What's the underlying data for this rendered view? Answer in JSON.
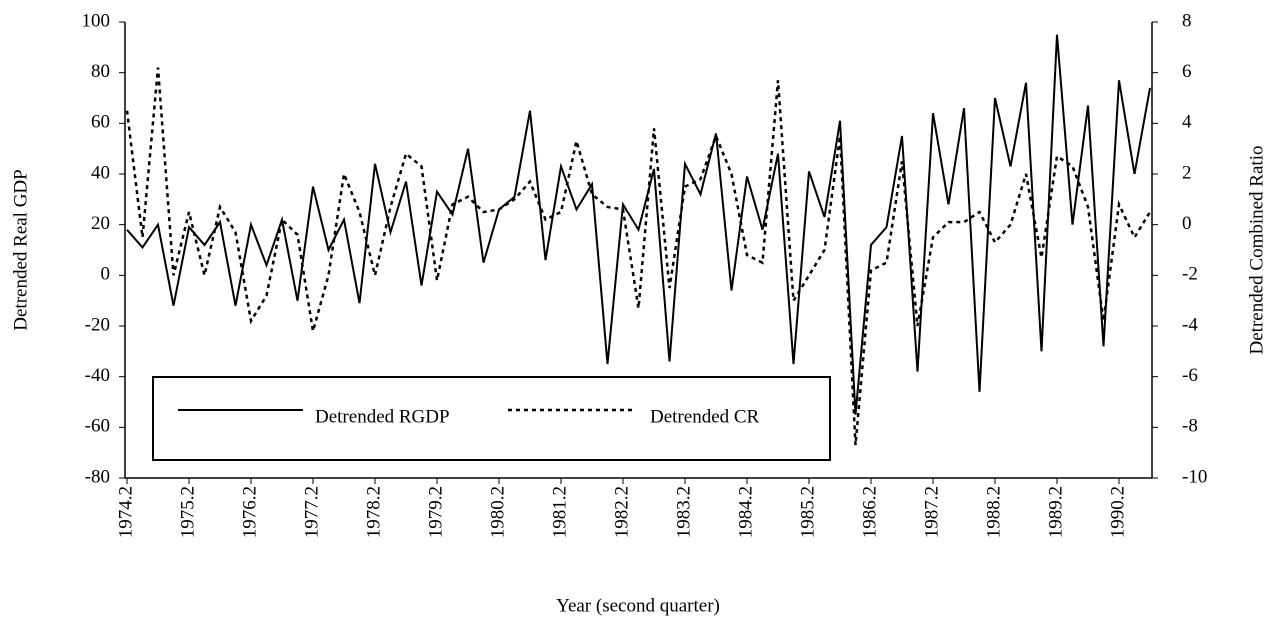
{
  "chart_data": {
    "type": "line",
    "x_label": "Year (second quarter)",
    "y_label": "Detrended Real GDP",
    "y2_label": "Detrended Combined Ratio",
    "categories": [
      "1974.2",
      null,
      null,
      null,
      "1975.2",
      null,
      null,
      null,
      "1976.2",
      null,
      null,
      null,
      "1977.2",
      null,
      null,
      null,
      "1978.2",
      null,
      null,
      null,
      "1979.2",
      null,
      null,
      null,
      "1980.2",
      null,
      null,
      null,
      "1981.2",
      null,
      null,
      null,
      "1982.2",
      null,
      null,
      null,
      "1983.2",
      null,
      null,
      null,
      "1984.2",
      null,
      null,
      null,
      "1985.2",
      null,
      null,
      null,
      "1986.2",
      null,
      null,
      null,
      "1987.2",
      null,
      null,
      null,
      "1988.2",
      null,
      null,
      null,
      "1989.2",
      null,
      null,
      null,
      "1990.2",
      null,
      null
    ],
    "series": [
      {
        "name": "Detrended RGDP",
        "color": "#000000",
        "dash": "solid",
        "values": [
          18,
          11,
          20,
          -12,
          19,
          12,
          21,
          -12,
          20,
          4,
          22,
          -10,
          35,
          10,
          22,
          -11,
          44,
          17,
          37,
          -4,
          33,
          24,
          50,
          5,
          26,
          31,
          65,
          6,
          43,
          26,
          36,
          -35,
          28,
          18,
          42,
          -34,
          44,
          32,
          56,
          -6,
          39,
          18,
          48,
          -35,
          41,
          23,
          61,
          -55,
          12,
          19,
          55,
          -38,
          64,
          28,
          66,
          -46,
          70,
          43,
          76,
          -30,
          95,
          20,
          67,
          -28,
          77,
          40,
          74
        ]
      },
      {
        "name": "Detrended CR",
        "color": "#000000",
        "dash": "dotted",
        "axis": "y2",
        "values": [
          4.5,
          -0.5,
          6.2,
          -2,
          0.5,
          -2,
          0.7,
          -0.3,
          -3.8,
          -2.8,
          0.2,
          -0.4,
          -4.2,
          -2,
          2,
          0.5,
          -2,
          0.7,
          2.8,
          2.3,
          -2.2,
          0.8,
          1.1,
          0.5,
          0.6,
          1,
          1.7,
          0.2,
          0.5,
          3.3,
          1.2,
          0.7,
          0.6,
          -3.3,
          3.8,
          -2.5,
          1.5,
          1.8,
          3.5,
          2,
          -1.2,
          -1.5,
          5.7,
          -3,
          -2,
          -1,
          3.5,
          -8.7,
          -1.8,
          -1.5,
          2.5,
          -4,
          -0.5,
          0.1,
          0.1,
          0.5,
          -0.7,
          0,
          2,
          -1.3,
          2.7,
          2.3,
          0.7,
          -3.8,
          0.8,
          -0.5,
          0.5
        ]
      }
    ],
    "ylim": [
      -80,
      100
    ],
    "yticks": [
      -80,
      -60,
      -40,
      -20,
      0,
      20,
      40,
      60,
      80,
      100
    ],
    "y2lim": [
      -10,
      8
    ],
    "y2ticks": [
      -10,
      -8,
      -6,
      -4,
      -2,
      0,
      2,
      4,
      6,
      8
    ],
    "legend": "lower left",
    "grid": false
  }
}
